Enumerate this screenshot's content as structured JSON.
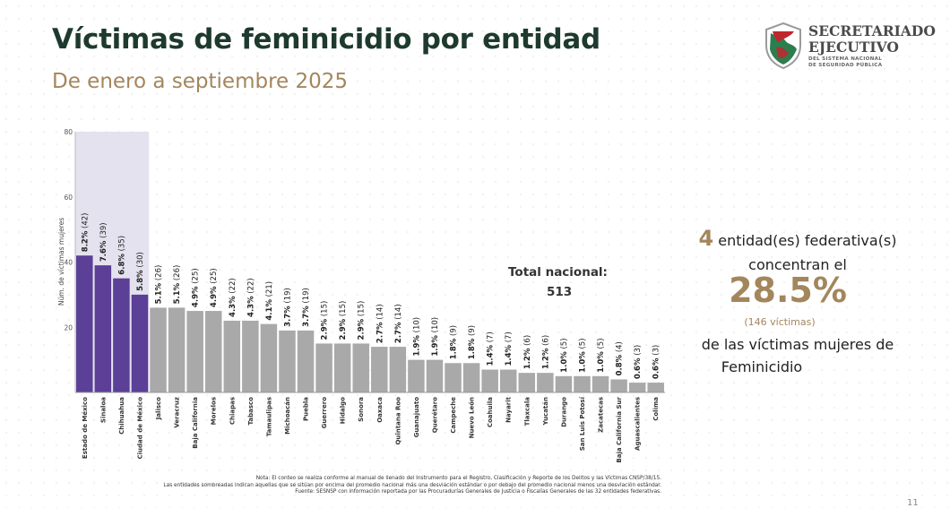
{
  "header": {
    "title": "Víctimas de feminicidio por entidad",
    "subtitle": "De enero a septiembre 2025"
  },
  "logo": {
    "line1": "SECRETARIADO",
    "line2": "EJECUTIVO",
    "line3": "DEL SISTEMA NACIONAL",
    "line4": "DE SEGURIDAD PÚBLICA"
  },
  "chart_data": {
    "type": "bar",
    "ylabel": "Núm. de víctimas mujeres",
    "xlabel": "",
    "ylim": [
      0,
      80
    ],
    "yticks": [
      20,
      40,
      60,
      80
    ],
    "grid": false,
    "categories": [
      "Estado de México",
      "Sinaloa",
      "Chihuahua",
      "Ciudad de México",
      "Jalisco",
      "Veracruz",
      "Baja California",
      "Morelos",
      "Chiapas",
      "Tabasco",
      "Tamaulipas",
      "Michoacán",
      "Puebla",
      "Guerrero",
      "Hidalgo",
      "Sonora",
      "Oaxaca",
      "Quintana Roo",
      "Guanajuato",
      "Querétaro",
      "Campeche",
      "Nuevo León",
      "Coahuila",
      "Nayarit",
      "Tlaxcala",
      "Yucatán",
      "Durango",
      "San Luis Potosí",
      "Zacatecas",
      "Baja California Sur",
      "Aguascalientes",
      "Colima"
    ],
    "values": [
      42,
      39,
      35,
      30,
      26,
      26,
      25,
      25,
      22,
      22,
      21,
      19,
      19,
      15,
      15,
      15,
      14,
      14,
      10,
      10,
      9,
      9,
      7,
      7,
      6,
      6,
      5,
      5,
      5,
      4,
      3,
      3
    ],
    "percents": [
      "8.2%",
      "7.6%",
      "6.8%",
      "5.8%",
      "5.1%",
      "5.1%",
      "4.9%",
      "4.9%",
      "4.3%",
      "4.3%",
      "4.1%",
      "3.7%",
      "3.7%",
      "2.9%",
      "2.9%",
      "2.9%",
      "2.7%",
      "2.7%",
      "1.9%",
      "1.9%",
      "1.8%",
      "1.8%",
      "1.4%",
      "1.4%",
      "1.2%",
      "1.2%",
      "1.0%",
      "1.0%",
      "1.0%",
      "0.8%",
      "0.6%",
      "0.6%"
    ],
    "counts": [
      "(42)",
      "(39)",
      "(35)",
      "(30)",
      "(26)",
      "(26)",
      "(25)",
      "(25)",
      "(22)",
      "(22)",
      "(21)",
      "(19)",
      "(19)",
      "(15)",
      "(15)",
      "(15)",
      "(14)",
      "(14)",
      "(10)",
      "(10)",
      "(9)",
      "(9)",
      "(7)",
      "(7)",
      "(6)",
      "(6)",
      "(5)",
      "(5)",
      "(5)",
      "(4)",
      "(3)",
      "(3)"
    ],
    "highlighted_count": 4,
    "colors": {
      "highlight": "#5c3f96",
      "normal": "#a9a9a9",
      "shade": "#e4e2ee"
    }
  },
  "total": {
    "label": "Total nacional:",
    "value": "513"
  },
  "summary": {
    "count": "4",
    "line1": "entidad(es)  federativa(s)",
    "line2": "concentran el",
    "percent": "28.5%",
    "victims": "(146 víctimas)",
    "line3": "de las  víctimas  mujeres de",
    "line4": "Feminicidio"
  },
  "notes": {
    "line1": "Nota: El conteo se realiza conforme al manual de llenado del Instrumento para el Registro, Clasificación y Reporte de los Delitos y las Víctimas CNSP/38/15.",
    "line2": "Las entidades sombreadas indican aquellas que se sitúan por encima del promedio nacional más una desviación estándar o por debajo del promedio nacional menos una desviación estándar.",
    "line3": "Fuente: SESNSP con información reportada por las Procuradurías Generales de Justicia o Fiscalías Generales de las 32 entidades federativas."
  },
  "page": {
    "number": "11"
  },
  "colors": {
    "title": "#1e3a2f",
    "accent": "#a3865c"
  }
}
